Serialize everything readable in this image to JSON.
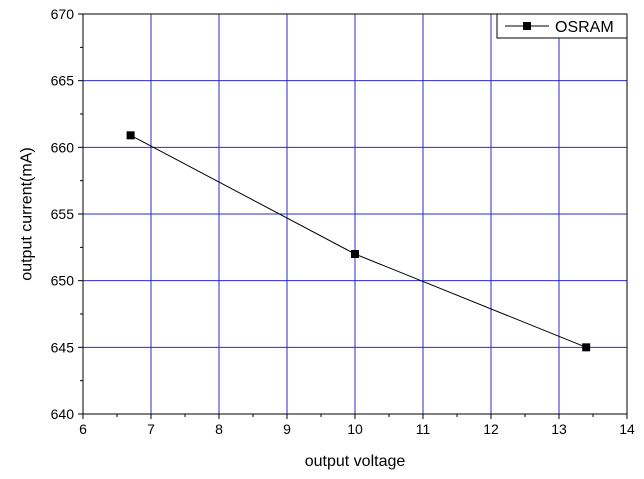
{
  "chart_data": {
    "type": "line",
    "title": "",
    "xlabel": "output voltage",
    "ylabel": "output current(mA)",
    "xlim": [
      6,
      14
    ],
    "ylim": [
      640,
      670
    ],
    "xticks": [
      6,
      7,
      8,
      9,
      10,
      11,
      12,
      13,
      14
    ],
    "yticks": [
      640,
      645,
      650,
      655,
      660,
      665,
      670
    ],
    "grid": true,
    "legend_position": "top-right",
    "colors": {
      "grid": "#2a2ad6",
      "series": "#000000"
    },
    "series": [
      {
        "name": "OSRAM",
        "marker": "square",
        "x": [
          6.7,
          10.0,
          13.4
        ],
        "y": [
          660.9,
          652.0,
          645.0
        ]
      }
    ]
  }
}
